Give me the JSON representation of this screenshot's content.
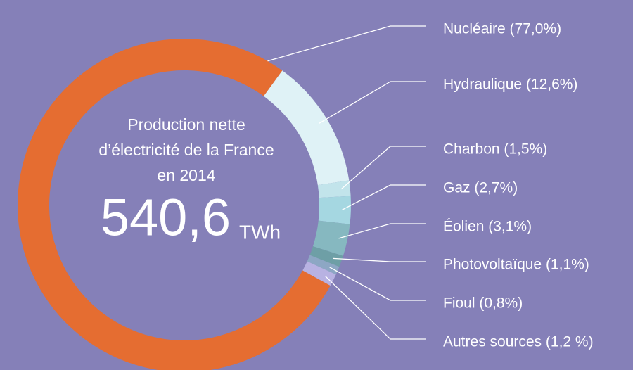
{
  "chart_data": {
    "type": "donut",
    "center_lines": [
      "Production nette",
      "d’électricité de la France",
      "en 2014"
    ],
    "total": "540,6",
    "unit": "TWh",
    "categories": [
      "Hydraulique (12,6%)",
      "Charbon (1,5%)",
      "Gaz (2,7%)",
      "Éolien (3,1%)",
      "Photovoltaïque (1,1%)",
      "Fioul (0,8%)",
      "Autres sources (1,2 %)",
      "Nucléaire (77,0%)"
    ],
    "values": [
      12.6,
      1.5,
      2.7,
      3.1,
      1.1,
      0.8,
      1.2,
      77.0
    ],
    "colors": [
      "#dff2f6",
      "#c2e4eb",
      "#a5d7e1",
      "#86b8c0",
      "#6e9fa6",
      "#8da7c4",
      "#b8b2e2",
      "#e56d31"
    ]
  }
}
